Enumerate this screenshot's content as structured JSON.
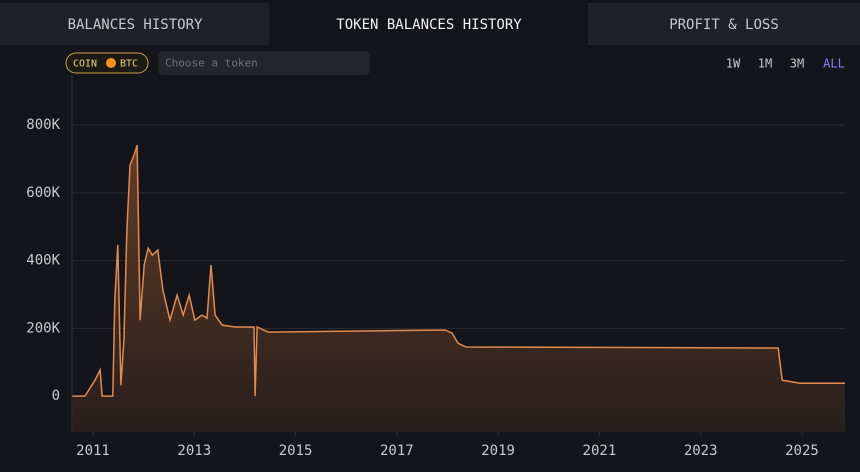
{
  "tabs": [
    "BALANCES HISTORY",
    "TOKEN BALANCES HISTORY",
    "PROFIT & LOSS"
  ],
  "active_tab": 1,
  "filter": {
    "chip_label": "COIN",
    "chip_value": "BTC",
    "placeholder": "Choose a token"
  },
  "ranges": [
    "1W",
    "1M",
    "3M",
    "ALL"
  ],
  "active_range": 3,
  "chart_data": {
    "type": "area",
    "x": [
      2010.59,
      2010.84,
      2011.04,
      2011.14,
      2011.18,
      2011.39,
      2011.43,
      2011.49,
      2011.55,
      2011.61,
      2011.67,
      2011.73,
      2011.81,
      2011.87,
      2011.93,
      2012.01,
      2012.09,
      2012.17,
      2012.28,
      2012.38,
      2012.52,
      2012.66,
      2012.78,
      2012.9,
      2013.01,
      2013.15,
      2013.25,
      2013.33,
      2013.41,
      2013.55,
      2013.8,
      2014.18,
      2014.2,
      2014.24,
      2014.46,
      2017.95,
      2018.09,
      2018.21,
      2018.37,
      2024.53,
      2024.61,
      2024.96,
      2025.85
    ],
    "values": [
      0,
      0,
      47000,
      77000,
      0,
      0,
      283000,
      446000,
      32000,
      165000,
      490000,
      682000,
      711000,
      741000,
      224000,
      387000,
      437000,
      416000,
      431000,
      313000,
      224000,
      298000,
      239000,
      298000,
      224000,
      239000,
      230000,
      387000,
      239000,
      210000,
      204000,
      204000,
      0,
      204000,
      189000,
      195000,
      186000,
      156000,
      145000,
      142000,
      47000,
      38000,
      38000
    ],
    "color": "#e38a4f",
    "xlim": [
      2010.585,
      2025.85
    ],
    "xticks": [
      2011,
      2013,
      2015,
      2017,
      2019,
      2021,
      2023,
      2025
    ],
    "ylim": [
      -106000,
      948000
    ],
    "yticks": [
      0,
      {
        "value": 200000,
        "label": "200K"
      },
      {
        "value": 400000,
        "label": "400K"
      },
      {
        "value": 600000,
        "label": "600K"
      },
      {
        "value": 800000,
        "label": "800K"
      }
    ],
    "grid": true
  }
}
